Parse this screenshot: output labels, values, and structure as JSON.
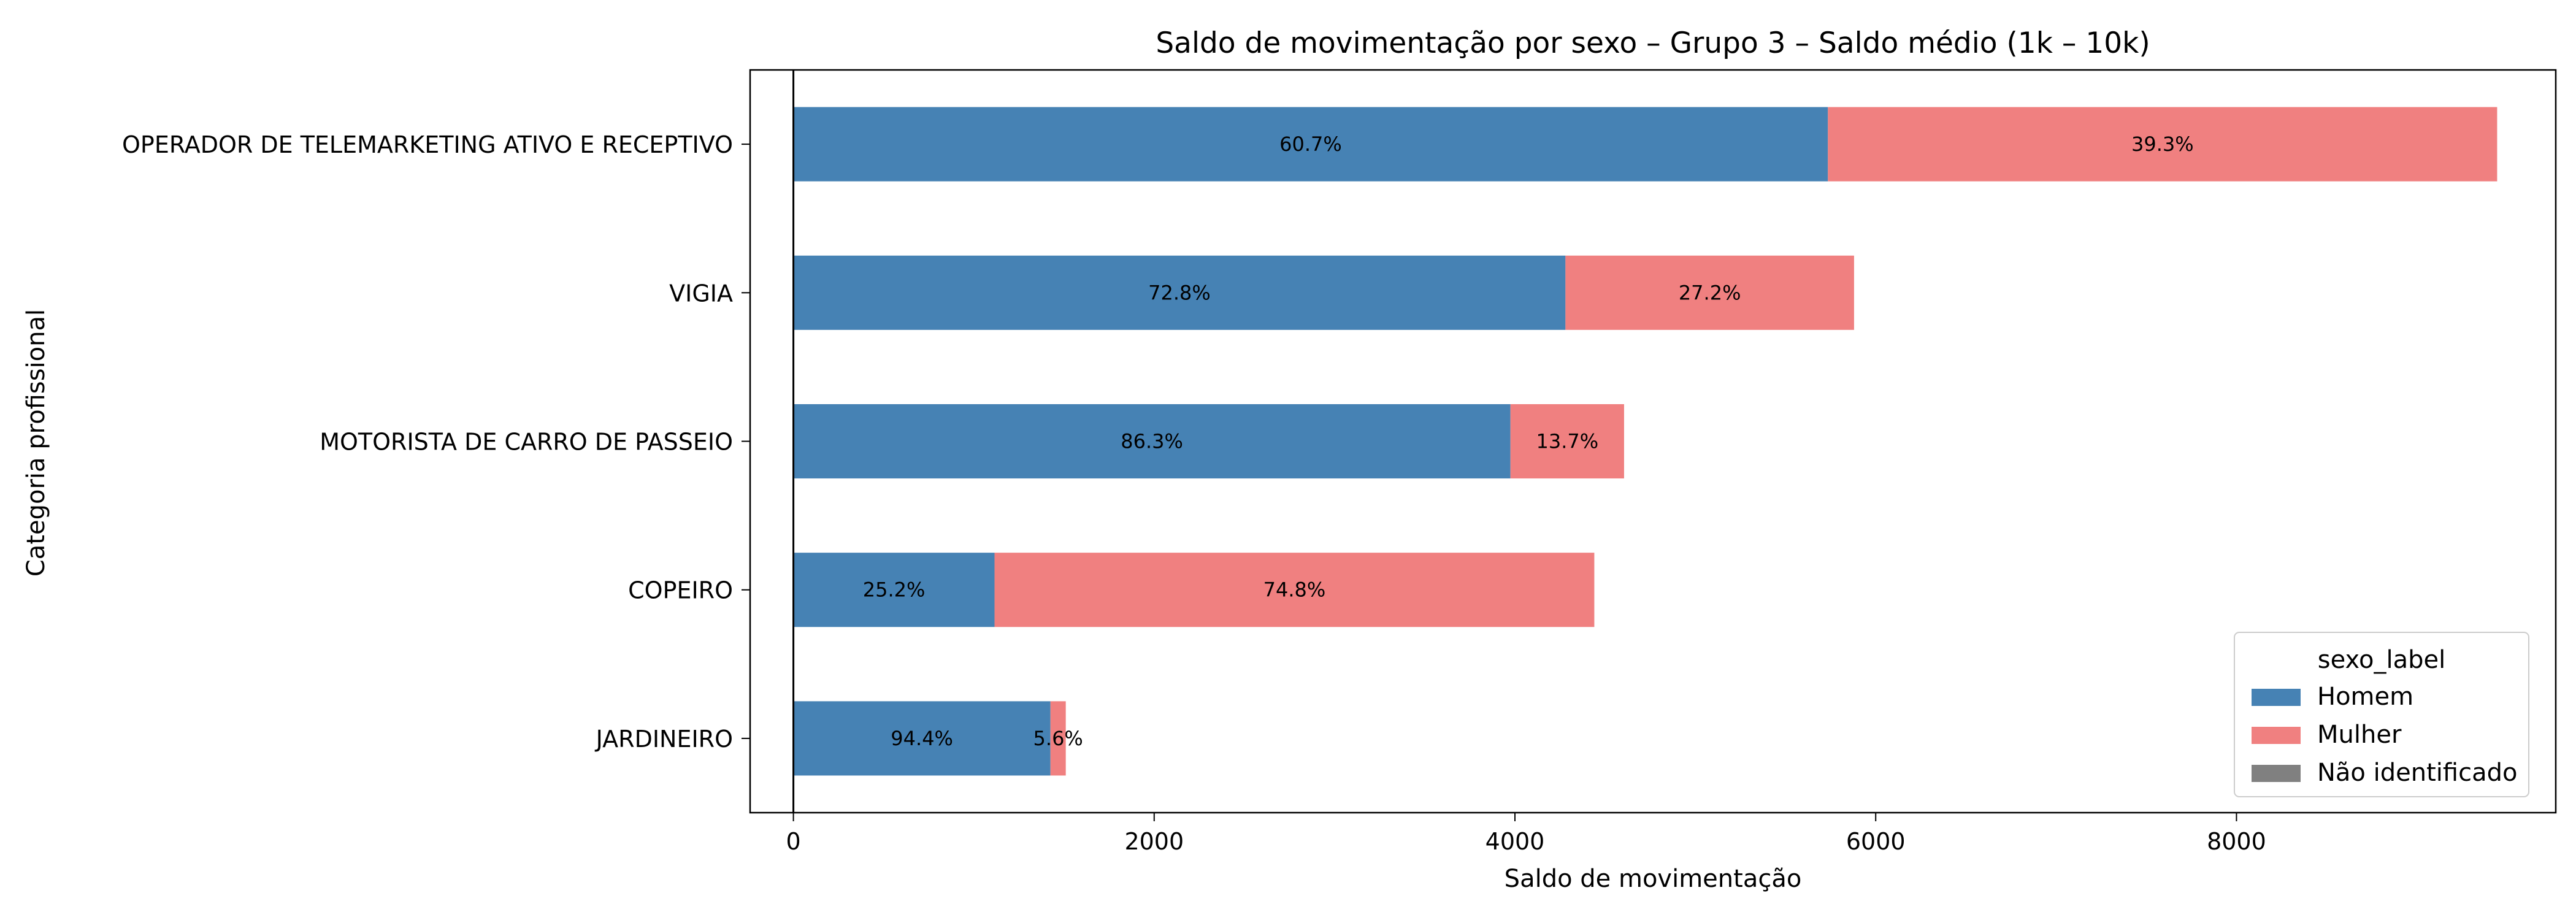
{
  "chart_data": {
    "type": "bar",
    "orientation": "horizontal",
    "stacked": true,
    "title": "Saldo de movimentação por sexo – Grupo 3 – Saldo médio (1k – 10k)",
    "xlabel": "Saldo de movimentação",
    "ylabel": "Categoria profissional",
    "xlim": [
      -240,
      9770
    ],
    "xticks": [
      0,
      2000,
      4000,
      6000,
      8000
    ],
    "xtick_labels": [
      "0",
      "2000",
      "4000",
      "6000",
      "8000"
    ],
    "grid": false,
    "zero_line": true,
    "categories": [
      "OPERADOR DE TELEMARKETING ATIVO E RECEPTIVO",
      "VIGIA",
      "MOTORISTA DE CARRO DE PASSEIO",
      "COPEIRO",
      "JARDINEIRO"
    ],
    "series": [
      {
        "name": "Homem",
        "color": "#4682b4",
        "values": [
          5735,
          4280,
          3975,
          1115,
          1425
        ],
        "labels": [
          "60.7%",
          "72.8%",
          "86.3%",
          "25.2%",
          "94.4%"
        ]
      },
      {
        "name": "Mulher",
        "color": "#f08080",
        "values": [
          3710,
          1600,
          630,
          3325,
          85
        ],
        "labels": [
          "39.3%",
          "27.2%",
          "13.7%",
          "74.8%",
          "5.6%"
        ]
      },
      {
        "name": "Não identificado",
        "color": "#808080",
        "values": [
          0,
          0,
          0,
          0,
          0
        ],
        "labels": [
          "",
          "",
          "",
          "",
          ""
        ]
      }
    ],
    "legend": {
      "title": "sexo_label",
      "position": "lower-right"
    }
  }
}
